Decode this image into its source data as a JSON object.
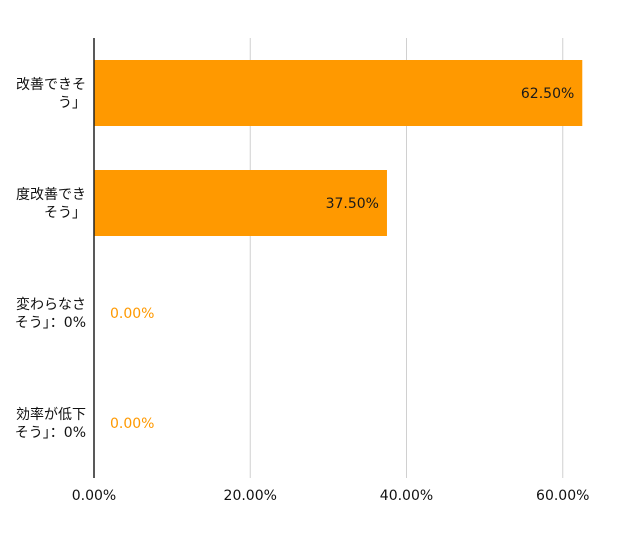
{
  "chart_data": {
    "type": "bar",
    "orientation": "horizontal",
    "categories": [
      [
        "改善できそ",
        "う」"
      ],
      [
        "度改善でき",
        "そう」"
      ],
      [
        "変わらなさ",
        "そう」：0%"
      ],
      [
        "効率が低下",
        "そう」：0%"
      ]
    ],
    "series": [
      {
        "values": [
          62.5,
          37.5,
          0,
          0
        ]
      }
    ],
    "data_labels": [
      "62.50%",
      "37.50%",
      "0.00%",
      "0.00%"
    ],
    "x_ticks": [
      0,
      20,
      40,
      60
    ],
    "x_tick_labels": [
      "0.00%",
      "20.00%",
      "40.00%",
      "60.00%"
    ],
    "xlim": [
      0,
      64
    ],
    "grid": true,
    "colors": {
      "bar": "#ff9900",
      "outside_label": "#ff9900",
      "inside_label": "#1a1a1a",
      "grid": "#d0d0d0",
      "axis": "#222222",
      "text": "#111111"
    }
  }
}
